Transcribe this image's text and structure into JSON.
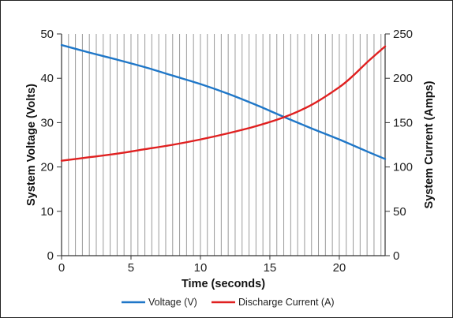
{
  "chart_data": {
    "type": "line",
    "xlabel": "Time (seconds)",
    "ylabel_left": "System Voltage (Volts)",
    "ylabel_right": "System Current (Amps)",
    "xlim": [
      0,
      23.3
    ],
    "ylim_left": [
      0,
      50
    ],
    "ylim_right": [
      0,
      250
    ],
    "x_ticks": [
      "0",
      "5",
      "10",
      "15",
      "20"
    ],
    "y_left_ticks": [
      "0",
      "10",
      "20",
      "30",
      "40",
      "50"
    ],
    "y_right_ticks": [
      "0",
      "50",
      "100",
      "150",
      "200",
      "250"
    ],
    "vertical_grid_step": 0.5,
    "legend_position": "bottom",
    "series": [
      {
        "name": "Voltage (V)",
        "axis": "left",
        "color": "#1f77c8",
        "x": [
          0,
          2,
          4,
          6,
          8,
          10,
          12,
          14,
          16,
          18,
          20,
          22,
          23.3
        ],
        "y": [
          47.5,
          45.8,
          44.2,
          42.5,
          40.6,
          38.7,
          36.5,
          34.0,
          31.3,
          28.7,
          26.2,
          23.5,
          21.8
        ]
      },
      {
        "name": "Discharge Current (A)",
        "axis": "right",
        "color": "#e02020",
        "x": [
          0,
          2,
          4,
          6,
          8,
          10,
          12,
          14,
          16,
          18,
          20,
          21,
          22,
          23.3
        ],
        "y": [
          107,
          111,
          115,
          120,
          125,
          131,
          138,
          146,
          156,
          170,
          190,
          203,
          218,
          236
        ]
      }
    ]
  }
}
